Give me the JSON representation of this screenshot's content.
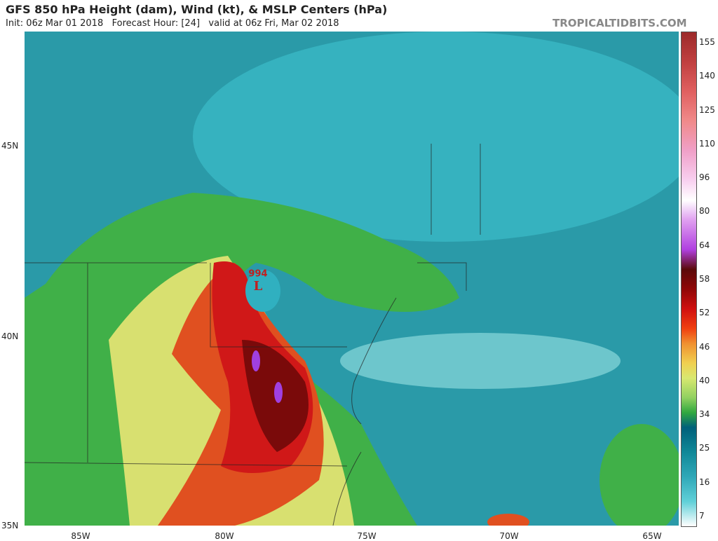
{
  "header": {
    "title": "GFS 850 hPa Height (dam), Wind (kt), & MSLP Centers (hPa)",
    "subtitle": "Init: 06z Mar 01 2018   Forecast Hour: [24]   valid at 06z Fri, Mar 02 2018",
    "site": "TROPICALTIDBITS.COM"
  },
  "map": {
    "latitudes": [
      "45N",
      "40N",
      "35N"
    ],
    "longitudes": [
      "85W",
      "80W",
      "75W",
      "70W",
      "65W"
    ],
    "low": {
      "pressure": "994",
      "symbol": "L"
    }
  },
  "colorbar": {
    "ticks": [
      "155",
      "140",
      "125",
      "110",
      "96",
      "80",
      "64",
      "58",
      "52",
      "46",
      "40",
      "34",
      "25",
      "16",
      "7"
    ]
  }
}
